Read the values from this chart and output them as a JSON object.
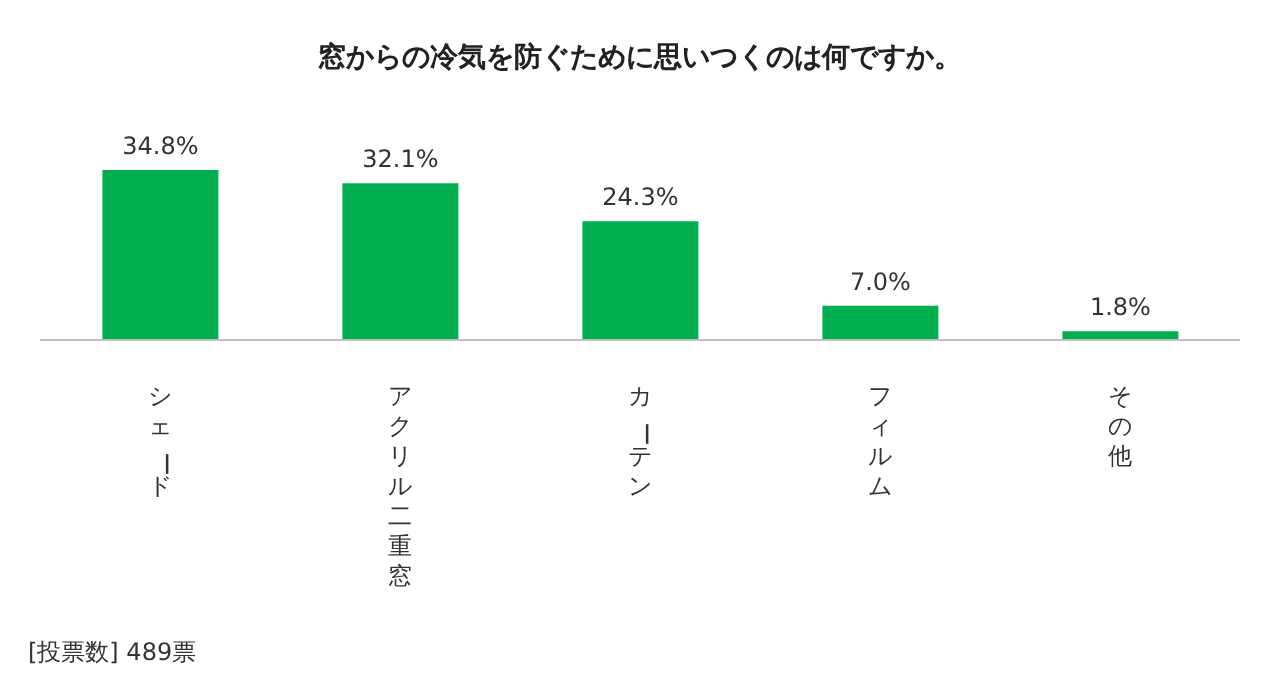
{
  "chart_data": {
    "type": "bar",
    "title": "窓からの冷気を防ぐために思いつくのは何ですか。",
    "categories": [
      "シェード",
      "アクリル二重窓",
      "カーテン",
      "フィルム",
      "その他"
    ],
    "values": [
      34.8,
      32.1,
      24.3,
      7.0,
      1.8
    ],
    "value_labels": [
      "34.8%",
      "32.1%",
      "24.3%",
      "7.0%",
      "1.8%"
    ],
    "color": "#00b050",
    "annotations": [
      "[投票数] 489票"
    ]
  }
}
